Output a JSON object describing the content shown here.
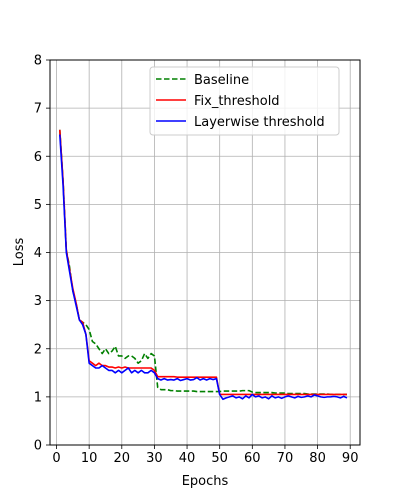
{
  "chart_data": {
    "type": "line",
    "title": "",
    "xlabel": "Epochs",
    "ylabel": "Loss",
    "xlim": [
      -2,
      93
    ],
    "ylim": [
      0,
      8
    ],
    "grid": true,
    "legend_position": "top-right",
    "x_ticks": [
      0,
      10,
      20,
      30,
      40,
      50,
      60,
      70,
      80,
      90
    ],
    "y_ticks": [
      0,
      1,
      2,
      3,
      4,
      5,
      6,
      7,
      8
    ],
    "x_tick_labels": [
      "0",
      "10",
      "20",
      "30",
      "40",
      "50",
      "60",
      "70",
      "80",
      "90"
    ],
    "y_tick_labels": [
      "0",
      "1",
      "2",
      "3",
      "4",
      "5",
      "6",
      "7",
      "8"
    ],
    "series": [
      {
        "name": "Baseline",
        "color": "#008000",
        "dash": "dashed",
        "x": [
          1,
          2,
          3,
          4,
          5,
          6,
          7,
          8,
          9,
          10,
          11,
          12,
          13,
          14,
          15,
          16,
          17,
          18,
          19,
          20,
          21,
          22,
          23,
          24,
          25,
          26,
          27,
          28,
          29,
          30,
          31,
          32,
          33,
          34,
          35,
          36,
          37,
          38,
          39,
          40,
          41,
          42,
          43,
          44,
          45,
          46,
          47,
          48,
          49,
          50,
          51,
          52,
          53,
          54,
          55,
          56,
          57,
          58,
          59,
          60,
          61,
          62,
          63,
          64,
          65,
          66,
          67,
          68,
          69,
          70,
          71,
          72,
          73,
          74,
          75,
          76,
          77,
          78,
          79,
          80,
          81,
          82,
          83,
          84,
          85,
          86,
          87,
          88,
          89
        ],
        "values": [
          6.55,
          5.5,
          4.05,
          3.7,
          3.2,
          2.95,
          2.6,
          2.55,
          2.5,
          2.4,
          2.15,
          2.1,
          2.0,
          1.9,
          2.0,
          1.9,
          1.95,
          2.05,
          1.85,
          1.85,
          1.8,
          1.85,
          1.85,
          1.8,
          1.7,
          1.75,
          1.9,
          1.8,
          1.9,
          1.85,
          1.2,
          1.15,
          1.15,
          1.15,
          1.13,
          1.13,
          1.12,
          1.12,
          1.12,
          1.12,
          1.12,
          1.12,
          1.11,
          1.11,
          1.11,
          1.11,
          1.11,
          1.11,
          1.11,
          1.11,
          1.12,
          1.12,
          1.12,
          1.12,
          1.12,
          1.12,
          1.13,
          1.13,
          1.13,
          1.1,
          1.09,
          1.09,
          1.09,
          1.09,
          1.09,
          1.09,
          1.08,
          1.08,
          1.08,
          1.08,
          1.07,
          1.07,
          1.07,
          1.07,
          1.07,
          1.07,
          1.06,
          1.06,
          1.06,
          1.06,
          1.06,
          1.06,
          1.06,
          1.05,
          1.05,
          1.05,
          1.05,
          1.05,
          1.05
        ]
      },
      {
        "name": "Fix_threshold",
        "color": "#ff0000",
        "dash": "solid",
        "x": [
          1,
          2,
          3,
          4,
          5,
          6,
          7,
          8,
          9,
          10,
          11,
          12,
          13,
          14,
          15,
          16,
          17,
          18,
          19,
          20,
          21,
          22,
          23,
          24,
          25,
          26,
          27,
          28,
          29,
          30,
          31,
          32,
          33,
          34,
          35,
          36,
          37,
          38,
          39,
          40,
          41,
          42,
          43,
          44,
          45,
          46,
          47,
          48,
          49,
          50,
          51,
          52,
          53,
          54,
          55,
          56,
          57,
          58,
          59,
          60,
          61,
          62,
          63,
          64,
          65,
          66,
          67,
          68,
          69,
          70,
          71,
          72,
          73,
          74,
          75,
          76,
          77,
          78,
          79,
          80,
          81,
          82,
          83,
          84,
          85,
          86,
          87,
          88,
          89
        ],
        "values": [
          6.55,
          5.5,
          4.05,
          3.65,
          3.25,
          2.95,
          2.6,
          2.55,
          2.3,
          1.75,
          1.7,
          1.65,
          1.7,
          1.65,
          1.65,
          1.62,
          1.62,
          1.6,
          1.62,
          1.6,
          1.62,
          1.6,
          1.6,
          1.6,
          1.6,
          1.6,
          1.6,
          1.6,
          1.6,
          1.55,
          1.42,
          1.42,
          1.42,
          1.42,
          1.42,
          1.42,
          1.41,
          1.41,
          1.41,
          1.41,
          1.41,
          1.41,
          1.41,
          1.41,
          1.41,
          1.41,
          1.41,
          1.41,
          1.41,
          1.05,
          1.05,
          1.05,
          1.05,
          1.05,
          1.05,
          1.05,
          1.05,
          1.05,
          1.05,
          1.05,
          1.05,
          1.05,
          1.05,
          1.05,
          1.05,
          1.05,
          1.05,
          1.05,
          1.05,
          1.05,
          1.05,
          1.05,
          1.05,
          1.05,
          1.05,
          1.05,
          1.05,
          1.05,
          1.05,
          1.05,
          1.05,
          1.05,
          1.05,
          1.05,
          1.05,
          1.05,
          1.05,
          1.05,
          1.05
        ]
      },
      {
        "name": "Layerwise threshold",
        "color": "#0000ff",
        "dash": "solid",
        "x": [
          1,
          2,
          3,
          4,
          5,
          6,
          7,
          8,
          9,
          10,
          11,
          12,
          13,
          14,
          15,
          16,
          17,
          18,
          19,
          20,
          21,
          22,
          23,
          24,
          25,
          26,
          27,
          28,
          29,
          30,
          31,
          32,
          33,
          34,
          35,
          36,
          37,
          38,
          39,
          40,
          41,
          42,
          43,
          44,
          45,
          46,
          47,
          48,
          49,
          50,
          51,
          52,
          53,
          54,
          55,
          56,
          57,
          58,
          59,
          60,
          61,
          62,
          63,
          64,
          65,
          66,
          67,
          68,
          69,
          70,
          71,
          72,
          73,
          74,
          75,
          76,
          77,
          78,
          79,
          80,
          81,
          82,
          83,
          84,
          85,
          86,
          87,
          88,
          89
        ],
        "values": [
          6.45,
          5.4,
          4.0,
          3.6,
          3.2,
          2.9,
          2.6,
          2.5,
          2.3,
          1.7,
          1.65,
          1.6,
          1.6,
          1.65,
          1.6,
          1.55,
          1.55,
          1.5,
          1.55,
          1.5,
          1.55,
          1.6,
          1.5,
          1.55,
          1.5,
          1.55,
          1.5,
          1.5,
          1.55,
          1.5,
          1.38,
          1.35,
          1.38,
          1.35,
          1.36,
          1.35,
          1.38,
          1.34,
          1.36,
          1.38,
          1.35,
          1.36,
          1.4,
          1.35,
          1.38,
          1.35,
          1.38,
          1.36,
          1.38,
          1.05,
          0.95,
          0.98,
          1.0,
          1.02,
          0.98,
          1.0,
          0.96,
          1.02,
          0.98,
          1.05,
          1.0,
          1.02,
          0.98,
          1.0,
          0.96,
          1.02,
          0.98,
          1.0,
          0.97,
          1.0,
          1.02,
          1.0,
          0.98,
          1.01,
          0.99,
          1.0,
          1.02,
          1.0,
          1.04,
          1.02,
          1.0,
          0.99,
          1.0,
          1.0,
          1.01,
          1.0,
          0.98,
          1.01,
          0.98
        ]
      }
    ]
  }
}
